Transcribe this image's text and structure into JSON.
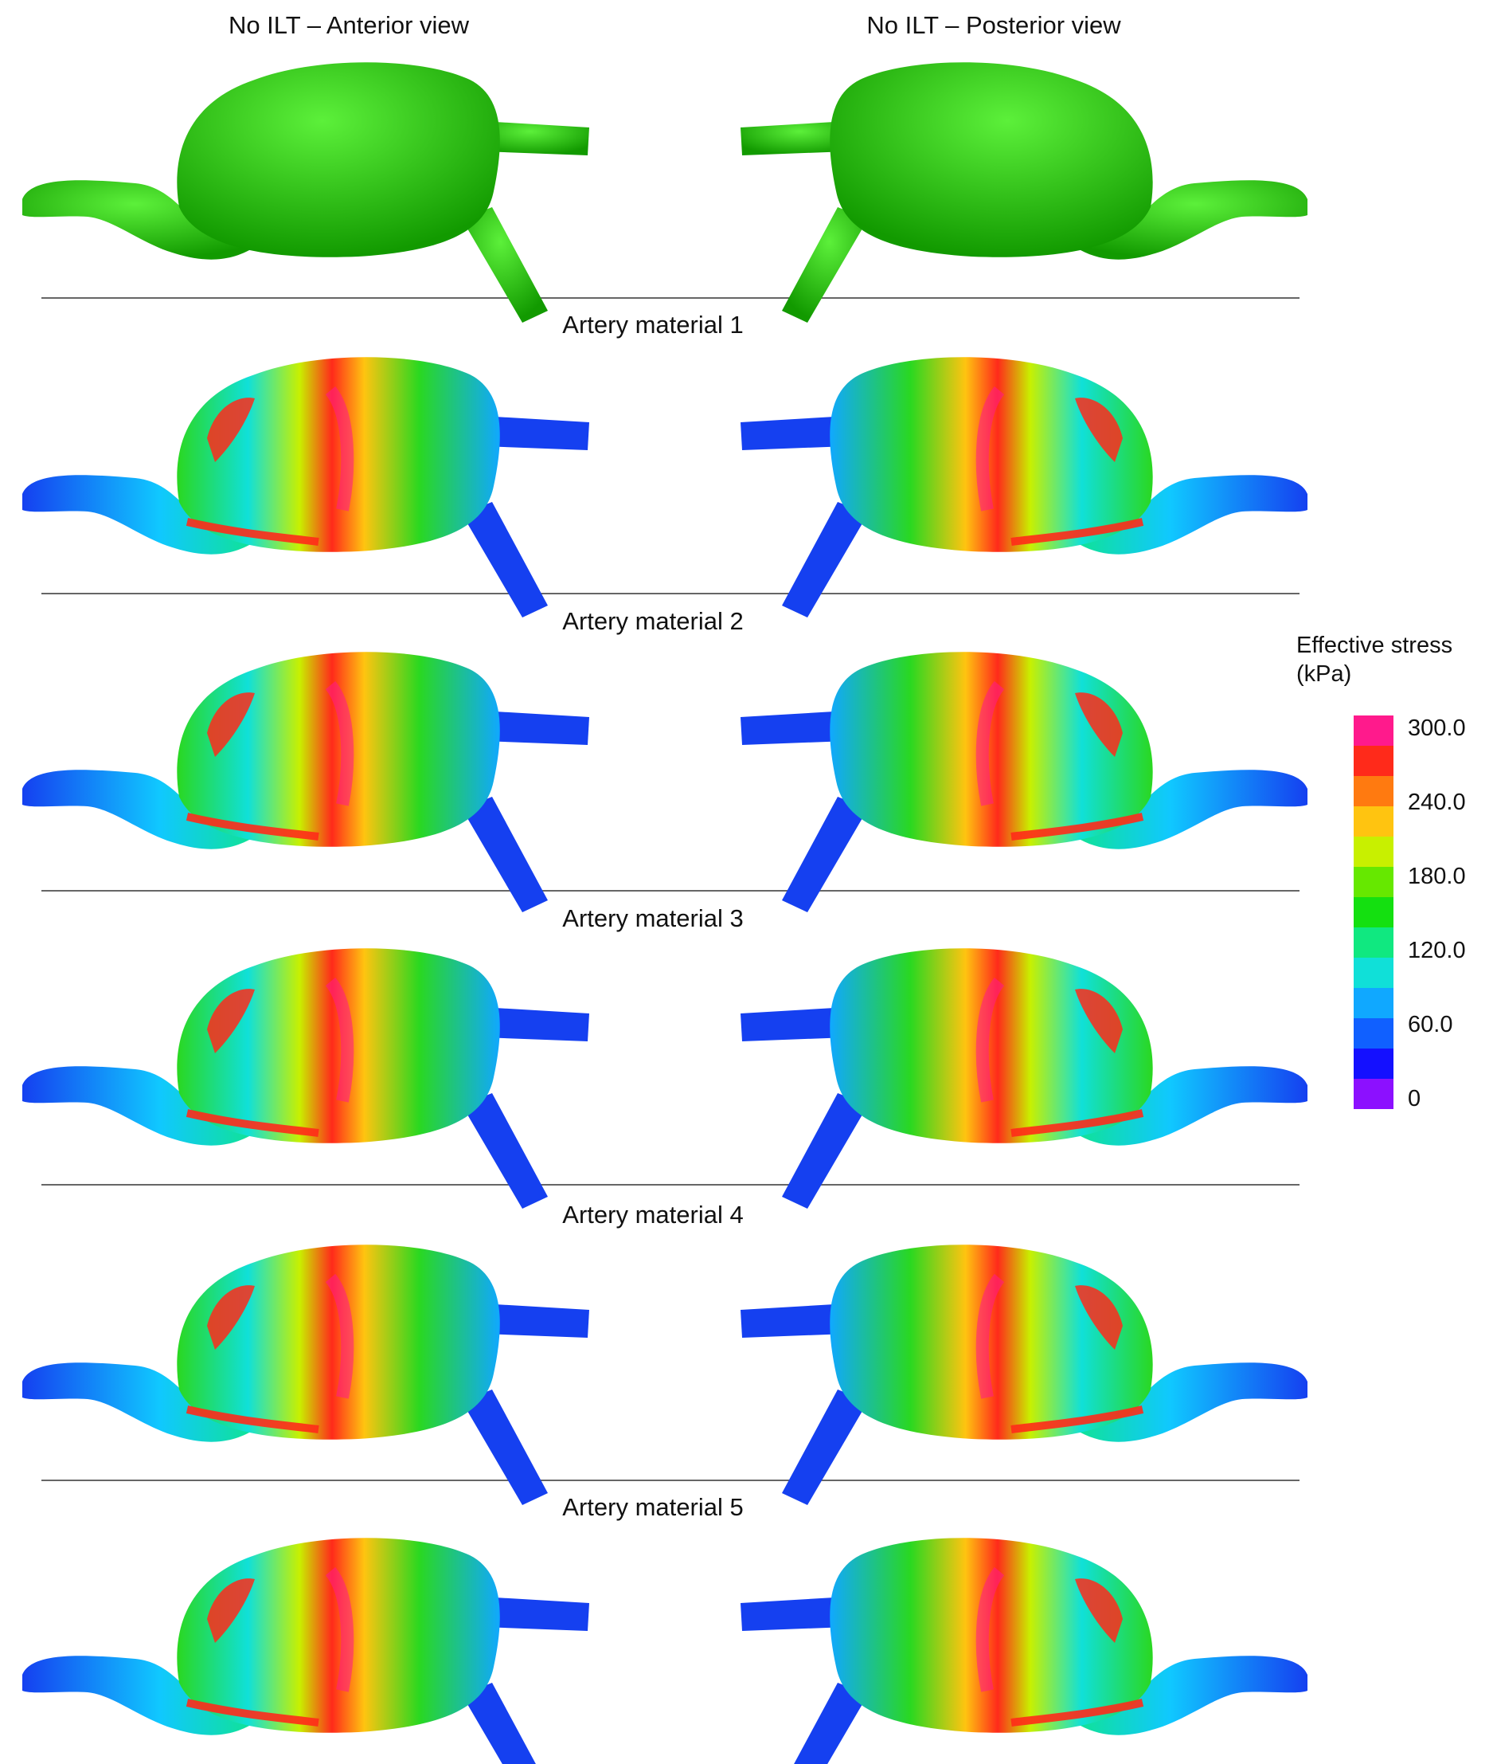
{
  "views": {
    "anterior_title": "No ILT – Anterior view",
    "posterior_title": "No ILT – Posterior view"
  },
  "rows": [
    {
      "label": ""
    },
    {
      "label": "Artery material 1"
    },
    {
      "label": "Artery material 2"
    },
    {
      "label": "Artery material 3"
    },
    {
      "label": "Artery material 4"
    },
    {
      "label": "Artery material 5"
    }
  ],
  "legend": {
    "title": "Effective stress\n(kPa)",
    "ticks": [
      "300.0",
      "240.0",
      "180.0",
      "120.0",
      "60.0",
      "0"
    ],
    "colors": [
      "#ff1a8c",
      "#ff2a1a",
      "#ff7a10",
      "#ffc410",
      "#c8f000",
      "#66e800",
      "#14e010",
      "#10e880",
      "#10e0d8",
      "#10a8ff",
      "#1060ff",
      "#1410ff",
      "#8c10ff"
    ]
  },
  "colors": {
    "no_ilt_model": "#22cc00",
    "stress_low": "#1540f0",
    "stress_mid": "#2ad820",
    "stress_high": "#ff2a1a",
    "stress_peak": "#ff1a8c"
  }
}
